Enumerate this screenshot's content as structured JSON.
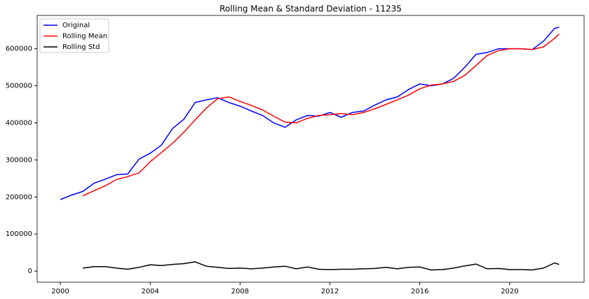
{
  "chart_data": {
    "type": "line",
    "title": "Rolling Mean & Standard Deviation - 11235",
    "x": [
      2000,
      2000.5,
      2001,
      2001.5,
      2002,
      2002.5,
      2003,
      2003.5,
      2004,
      2004.5,
      2005,
      2005.5,
      2006,
      2006.5,
      2007,
      2007.5,
      2008,
      2008.5,
      2009,
      2009.5,
      2010,
      2010.5,
      2011,
      2011.5,
      2012,
      2012.5,
      2013,
      2013.5,
      2014,
      2014.5,
      2015,
      2015.5,
      2016,
      2016.5,
      2017,
      2017.5,
      2018,
      2018.5,
      2019,
      2019.5,
      2020,
      2020.5,
      2021,
      2021.5,
      2022,
      2022.2
    ],
    "series": [
      {
        "name": "Original",
        "color": "#0000ff",
        "values": [
          193000,
          205000,
          215000,
          237000,
          248000,
          260000,
          262000,
          302000,
          318000,
          340000,
          385000,
          410000,
          455000,
          462000,
          468000,
          455000,
          445000,
          432000,
          420000,
          400000,
          388000,
          408000,
          420000,
          418000,
          428000,
          415000,
          428000,
          432000,
          448000,
          462000,
          470000,
          490000,
          505000,
          500000,
          505000,
          520000,
          550000,
          585000,
          590000,
          600000,
          600000,
          600000,
          598000,
          620000,
          655000,
          658000
        ]
      },
      {
        "name": "Rolling Mean",
        "color": "#ff0000",
        "values": [
          null,
          null,
          203000,
          217000,
          230000,
          247000,
          255000,
          265000,
          295000,
          320000,
          345000,
          375000,
          408000,
          440000,
          465000,
          470000,
          458000,
          447000,
          435000,
          418000,
          402000,
          400000,
          412000,
          420000,
          422000,
          425000,
          422000,
          428000,
          438000,
          450000,
          462000,
          475000,
          492000,
          502000,
          505000,
          512000,
          528000,
          555000,
          582000,
          595000,
          600000,
          600000,
          598000,
          605000,
          628000,
          640000
        ]
      },
      {
        "name": "Rolling Std",
        "color": "#000000",
        "values": [
          null,
          null,
          8000,
          12000,
          12000,
          8000,
          5000,
          10000,
          17000,
          15000,
          18000,
          20000,
          25000,
          13000,
          10000,
          7000,
          8000,
          6000,
          8000,
          11000,
          13000,
          6000,
          11000,
          5000,
          4000,
          5000,
          5000,
          6000,
          7000,
          10000,
          6000,
          10000,
          11000,
          3000,
          4000,
          8000,
          14000,
          19000,
          6000,
          7000,
          4000,
          4000,
          3000,
          8000,
          22000,
          18000
        ]
      }
    ],
    "xlim": [
      1998.97,
      2023.31
    ],
    "xticks": [
      2000,
      2004,
      2008,
      2012,
      2016,
      2020
    ],
    "ylim": [
      -30000,
      690000
    ],
    "yticks": [
      0,
      100000,
      200000,
      300000,
      400000,
      500000,
      600000
    ],
    "grid": false,
    "legend": "upper left"
  }
}
